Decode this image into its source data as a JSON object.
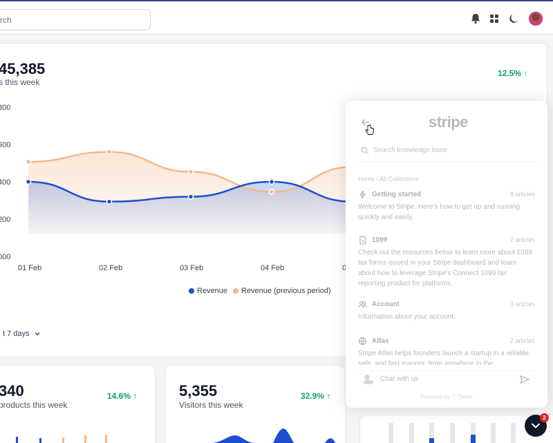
{
  "search": {
    "placeholder_fragment": "rch"
  },
  "revenue": {
    "total": "45,385",
    "caption": "s this week",
    "change": "12.5% ↑"
  },
  "chart_data": {
    "type": "area",
    "categories": [
      "01 Feb",
      "02 Feb",
      "03 Feb",
      "04 Feb",
      "0"
    ],
    "y_tick_labels": [
      "800",
      "600",
      "400",
      "200",
      "000"
    ],
    "series": [
      {
        "name": "Revenue",
        "color": "#1c4fd0",
        "values": [
          6.5,
          6.1,
          6.2,
          6.5,
          6.1
        ]
      },
      {
        "name": "Revenue (previous period)",
        "color": "#f5b88a",
        "values": [
          6.9,
          7.1,
          6.7,
          6.3,
          6.8
        ]
      }
    ],
    "legend_position": "bottom-center"
  },
  "range_selector": {
    "label": "t 7 days"
  },
  "stats": [
    {
      "value": "340",
      "caption": " products this week",
      "change": "14.6% ↑"
    },
    {
      "value": "5,355",
      "caption": "Visitors this week",
      "change": "32.9% ↑"
    }
  ],
  "widget": {
    "brand": "stripe",
    "search_placeholder": "Search knowledge base",
    "breadcrumb": "Home / All Collections",
    "items": [
      {
        "icon": "bolt-icon",
        "title": "Getting started",
        "count": "8 articles",
        "desc": "Welcome to Stripe. Here's how to get up and running quickly and easily."
      },
      {
        "icon": "document-icon",
        "title": "1099",
        "count": "2 articles",
        "desc": "Check out the resources below to learn more about 1099 tax forms issued in your Stripe dashboard and learn about how to leverage Stripe's Connect 1099 tax reporting product for platforms."
      },
      {
        "icon": "users-icon",
        "title": "Account",
        "count": "3 articles",
        "desc": "Information about your account."
      },
      {
        "icon": "globe-icon",
        "title": "Atlas",
        "count": "2 articles",
        "desc": "Stripe Atlas helps founders launch a startup in a reliable, safe, and fast manner, from anywhere in the"
      }
    ],
    "chat_label": "Chat with us",
    "powered_by": "Powered by ⓘ Trellis"
  },
  "fab": {
    "badge": "2"
  },
  "colors": {
    "accent_blue": "#1c4fd0",
    "accent_orange": "#f5b88a",
    "positive": "#0e9f6e"
  }
}
